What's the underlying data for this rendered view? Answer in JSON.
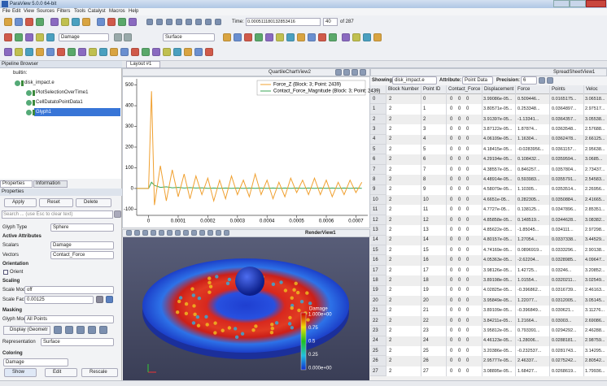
{
  "window": {
    "title": "ParaView 5.0.0 64-bit"
  },
  "menu": [
    "File",
    "Edit",
    "View",
    "Sources",
    "Filters",
    "Tools",
    "Catalyst",
    "Macros",
    "Help"
  ],
  "toolbar": {
    "time_label": "Time:",
    "time_value": "0.000511180132853416",
    "frame": "40",
    "of": "of 287",
    "color_by": "Damage",
    "representation": "Surface"
  },
  "pipeline": {
    "title": "Pipeline Browser",
    "items": [
      "builtin:",
      "disk_impact.e",
      "PlotSelectionOverTime1",
      "CellDatatoPointData1",
      "Glyph1"
    ]
  },
  "properties": {
    "tabs": [
      "Properties",
      "Information"
    ],
    "title": "Properties",
    "apply": "Apply",
    "reset": "Reset",
    "delete": "Delete",
    "search": "Search ... (use Esc to clear text)",
    "glyph_type_label": "Glyph Type",
    "glyph_type": "Sphere",
    "active_attributes": "Active Attributes",
    "scalars_label": "Scalars",
    "scalars": "Damage",
    "vectors_label": "Vectors",
    "vectors": "Contact_Force",
    "orientation": "Orientation",
    "orient": "Orient",
    "scaling": "Scaling",
    "scale_mode_label": "Scale Mode",
    "scale_mode": "off",
    "scale_factor_label": "Scale Factor",
    "scale_factor": "0.00125",
    "masking": "Masking",
    "glyph_mode_label": "Glyph Mode",
    "glyph_mode": "All Points",
    "display": "Display (Geometr",
    "representation_label": "Representation",
    "representation": "Surface",
    "coloring": "Coloring",
    "coloring_value": "Damage",
    "show": "Show",
    "edit": "Edit",
    "rescale": "Rescale"
  },
  "layout_tab": "Layout #1",
  "chart": {
    "view_title": "QuartileChartView2",
    "x": [
      -4e-05,
      0,
      1e-05,
      2e-05,
      4e-05,
      6e-05,
      8e-05,
      0.0001,
      0.00012,
      0.00014,
      0.00016,
      0.00018,
      0.0002,
      0.00022,
      0.00024,
      0.00026,
      0.00028,
      0.0003,
      0.00032,
      0.00034,
      0.00036,
      0.00038,
      0.0004,
      0.00042,
      0.00044,
      0.00046,
      0.00048,
      0.0005,
      0.00052,
      0.00054,
      0.00056,
      0.00058,
      0.0006,
      0.00062,
      0.00064,
      0.00066,
      0.00068,
      0.0007,
      0.00072
    ],
    "series": [
      {
        "name": "Force_Z (Block: 3; Point: 2439)",
        "color": "#f0a030",
        "values": [
          0,
          0,
          470,
          -80,
          110,
          -60,
          90,
          -40,
          70,
          -50,
          60,
          -30,
          50,
          -60,
          40,
          -50,
          60,
          -30,
          40,
          -40,
          70,
          -30,
          40,
          -50,
          30,
          -40,
          50,
          -20,
          40,
          -30,
          50,
          -30,
          40,
          -40,
          30,
          -30,
          40,
          -20,
          30
        ]
      },
      {
        "name": "Contact_Force_Magnitude (Block: 3; Point: 2439)",
        "color": "#3aa655",
        "values": [
          0,
          0,
          30,
          15,
          5,
          8,
          3,
          5,
          2,
          4,
          2,
          3,
          1,
          2,
          1,
          2,
          1,
          2,
          1,
          2,
          1,
          2,
          1,
          2,
          1,
          2,
          1,
          2,
          1,
          2,
          1,
          2,
          1,
          2,
          1,
          2,
          1,
          2,
          1
        ]
      }
    ],
    "xlim": [
      -4e-05,
      0.00074
    ],
    "xticks": [
      0,
      0.0001,
      0.0002,
      0.0003,
      0.0004,
      0.0005,
      0.0006,
      0.0007
    ],
    "ylim": [
      -130,
      530
    ],
    "yticks": [
      -100,
      0,
      100,
      200,
      300,
      400,
      500
    ]
  },
  "render": {
    "view_title": "RenderView1",
    "colorbar_title": "Damage",
    "colorbar_labels": [
      "1.000e+00",
      "0.75",
      "0.5",
      "0.25",
      "0.000e+00"
    ]
  },
  "spreadsheet": {
    "view_title": "SpreadSheetView1",
    "showing_label": "Showing",
    "showing": "disk_impact.e",
    "attribute_label": "Attribute:",
    "attribute": "Point Data",
    "precision_label": "Precision:",
    "precision": "6",
    "columns": [
      "Block Number",
      "Point ID",
      "Contact_Force",
      "Displacement",
      "Force",
      "Points",
      "Veloc"
    ],
    "rows": [
      [
        0,
        2,
        0,
        0,
        0,
        0,
        "3.99086e-05...",
        "0.509446...",
        "0.0165175...",
        "3.06518..."
      ],
      [
        1,
        2,
        1,
        0,
        0,
        0,
        "3.80571e-05...",
        "0.253348...",
        "0.0364897...",
        "2.97517..."
      ],
      [
        2,
        2,
        2,
        0,
        0,
        0,
        "3.91397e-05...",
        "-1.13341...",
        "0.0364357...",
        "3.05538..."
      ],
      [
        3,
        2,
        3,
        0,
        0,
        0,
        "3.87122e-05...",
        "1.87874...",
        "0.0363548...",
        "2.57688..."
      ],
      [
        4,
        2,
        4,
        0,
        0,
        0,
        "4.06109e-05...",
        "1.16304...",
        "0.0362478...",
        "2.66125..."
      ],
      [
        5,
        2,
        5,
        0,
        0,
        0,
        "4.18415e-05...",
        "-0.0283956...",
        "0.0361157...",
        "2.95638..."
      ],
      [
        6,
        2,
        6,
        0,
        0,
        0,
        "4.29194e-05...",
        "0.108432...",
        "0.0359594...",
        "3.0685..."
      ],
      [
        7,
        2,
        7,
        0,
        0,
        0,
        "4.38557e-05...",
        "0.846257...",
        "0.0357804...",
        "2.73437..."
      ],
      [
        8,
        2,
        8,
        0,
        0,
        0,
        "4.48914e-05...",
        "0.593983...",
        "0.0355791...",
        "2.54583..."
      ],
      [
        9,
        2,
        9,
        0,
        0,
        0,
        "4.58079e-05...",
        "1.10305...",
        "0.0353514...",
        "2.26956..."
      ],
      [
        10,
        2,
        10,
        0,
        0,
        0,
        "4.6651e-05...",
        "0.282305...",
        "0.0350884...",
        "2.41665..."
      ],
      [
        11,
        2,
        11,
        0,
        0,
        0,
        "4.7727e-05...",
        "0.138125...",
        "0.0347896...",
        "2.85351..."
      ],
      [
        12,
        2,
        12,
        0,
        0,
        0,
        "4.85858e-05...",
        "0.148519...",
        "0.0344628...",
        "3.08382..."
      ],
      [
        13,
        2,
        13,
        0,
        0,
        0,
        "4.85622e-05...",
        "-1.85045...",
        "0.034111...",
        "2.97298..."
      ],
      [
        14,
        2,
        14,
        0,
        0,
        0,
        "4.80157e-05...",
        "1.27054...",
        "0.0337338...",
        "3.44529..."
      ],
      [
        15,
        2,
        15,
        0,
        0,
        0,
        "4.74169e-05...",
        "0.0896919...",
        "0.0333296...",
        "2.90138..."
      ],
      [
        16,
        2,
        16,
        0,
        0,
        0,
        "4.05363e-05...",
        "-2.62204...",
        "0.0328985...",
        "4.09647..."
      ],
      [
        17,
        2,
        17,
        0,
        0,
        0,
        "3.98126e-05...",
        "1.42725...",
        "0.03246...",
        "3.20852..."
      ],
      [
        18,
        2,
        18,
        0,
        0,
        0,
        "3.89198e-05...",
        "1.01554...",
        "0.0320211...",
        "3.02549..."
      ],
      [
        19,
        2,
        19,
        0,
        0,
        0,
        "4.02825e-05...",
        "-0.396862...",
        "0.0316739...",
        "2.46163..."
      ],
      [
        20,
        2,
        20,
        0,
        0,
        0,
        "3.95849e-05...",
        "1.22077...",
        "0.0312005...",
        "3.05145..."
      ],
      [
        21,
        2,
        21,
        0,
        0,
        0,
        "3.89109e-05...",
        "-0.396849...",
        "0.030621...",
        "3.11276..."
      ],
      [
        22,
        2,
        22,
        0,
        0,
        0,
        "3.84211e-05...",
        "1.21664...",
        "0.03003...",
        "2.69086..."
      ],
      [
        23,
        2,
        23,
        0,
        0,
        0,
        "3.95812e-05...",
        "0.793391...",
        "0.0294292...",
        "2.46288..."
      ],
      [
        24,
        2,
        24,
        0,
        0,
        0,
        "4.46123e-05...",
        "-1.28006...",
        "0.0288181...",
        "2.98759..."
      ],
      [
        25,
        2,
        25,
        0,
        0,
        0,
        "3.20386e-05...",
        "-0.232537...",
        "0.0281743...",
        "3.14295..."
      ],
      [
        26,
        2,
        26,
        0,
        0,
        0,
        "2.95777e-05...",
        "2.46337...",
        "0.0275242...",
        "2.80542..."
      ],
      [
        27,
        2,
        27,
        0,
        0,
        0,
        "3.08895e-05...",
        "1.68427...",
        "0.0268619...",
        "1.79936..."
      ]
    ]
  }
}
